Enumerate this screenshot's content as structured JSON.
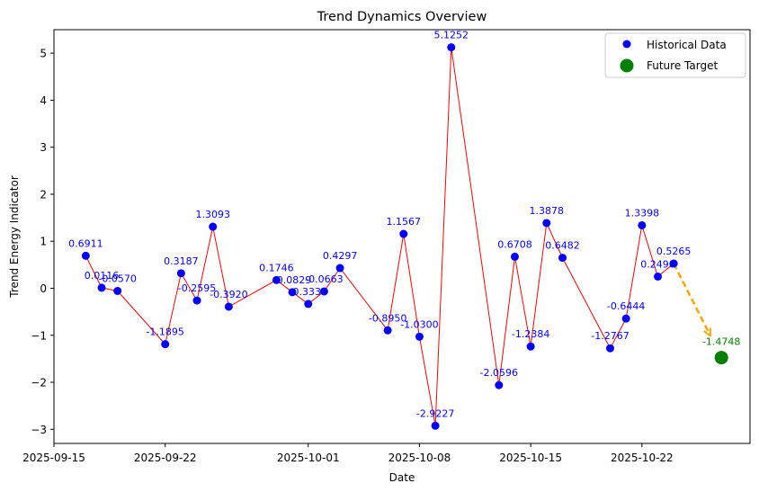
{
  "chart_data": {
    "type": "scatter",
    "title": "Trend Dynamics Overview",
    "xlabel": "Date",
    "ylabel": "Trend Energy Indicator",
    "xlim": [
      0,
      43.8
    ],
    "ylim": [
      -3.3,
      5.5
    ],
    "x_ticks": [
      {
        "x": 0,
        "label": "2025-09-15"
      },
      {
        "x": 7,
        "label": "2025-09-22"
      },
      {
        "x": 16,
        "label": "2025-10-01"
      },
      {
        "x": 23,
        "label": "2025-10-08"
      },
      {
        "x": 30,
        "label": "2025-10-15"
      },
      {
        "x": 37,
        "label": "2025-10-22"
      }
    ],
    "y_ticks": [
      -3,
      -2,
      -1,
      0,
      1,
      2,
      3,
      4,
      5
    ],
    "y_tick_labels": [
      "−3",
      "−2",
      "−1",
      "0",
      "1",
      "2",
      "3",
      "4",
      "5"
    ],
    "legend": {
      "position": "top-right",
      "entries": [
        "Historical Data",
        "Future Target"
      ]
    },
    "colors": {
      "historical": "#0000ff",
      "line": "#ff0000",
      "future": "#008000",
      "arrow": "#ffa500",
      "label_hist": "#0000ff",
      "label_future": "#008000"
    },
    "series": [
      {
        "name": "Historical Data",
        "points": [
          {
            "x": 2,
            "value": 0.6911,
            "label": "0.6911"
          },
          {
            "x": 3,
            "value": 0.0116,
            "label": "0.0116"
          },
          {
            "x": 4,
            "value": -0.057,
            "label": "-0.0570"
          },
          {
            "x": 7,
            "value": -1.1895,
            "label": "-1.1895"
          },
          {
            "x": 8,
            "value": 0.3187,
            "label": "0.3187"
          },
          {
            "x": 9,
            "value": -0.2595,
            "label": "-0.2595"
          },
          {
            "x": 10,
            "value": 1.3093,
            "label": "1.3093"
          },
          {
            "x": 11,
            "value": -0.392,
            "label": "-0.3920"
          },
          {
            "x": 14,
            "value": 0.1746,
            "label": "0.1746"
          },
          {
            "x": 15,
            "value": -0.0829,
            "label": "-0.0829"
          },
          {
            "x": 16,
            "value": -0.333,
            "label": "-0.3330"
          },
          {
            "x": 17,
            "value": -0.0663,
            "label": "-0.0663"
          },
          {
            "x": 18,
            "value": 0.4297,
            "label": "0.4297"
          },
          {
            "x": 21,
            "value": -0.895,
            "label": "-0.8950"
          },
          {
            "x": 22,
            "value": 1.1567,
            "label": "1.1567"
          },
          {
            "x": 23,
            "value": -1.03,
            "label": "-1.0300"
          },
          {
            "x": 24,
            "value": -2.9227,
            "label": "-2.9227"
          },
          {
            "x": 25,
            "value": 5.1252,
            "label": "5.1252"
          },
          {
            "x": 28,
            "value": -2.0596,
            "label": "-2.0596"
          },
          {
            "x": 29,
            "value": 0.6708,
            "label": "0.6708"
          },
          {
            "x": 30,
            "value": -1.2384,
            "label": "-1.2384"
          },
          {
            "x": 31,
            "value": 1.3878,
            "label": "1.3878"
          },
          {
            "x": 32,
            "value": 0.6482,
            "label": "0.6482"
          },
          {
            "x": 35,
            "value": -1.2767,
            "label": "-1.2767"
          },
          {
            "x": 36,
            "value": -0.6444,
            "label": "-0.6444"
          },
          {
            "x": 37,
            "value": 1.3398,
            "label": "1.3398"
          },
          {
            "x": 38,
            "value": 0.249,
            "label": "0.2490"
          },
          {
            "x": 39,
            "value": 0.5265,
            "label": "0.5265"
          }
        ]
      },
      {
        "name": "Future Target",
        "points": [
          {
            "x": 42,
            "value": -1.4748,
            "label": "-1.4748"
          }
        ]
      }
    ]
  }
}
